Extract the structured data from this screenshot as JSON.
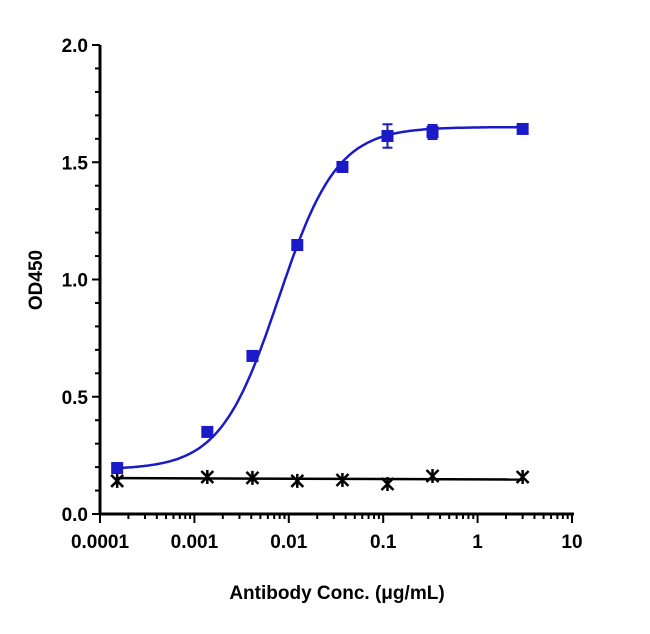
{
  "chart_data": {
    "type": "scatter",
    "title": "",
    "xlabel": "Antibody Conc. (μg/mL)",
    "ylabel": "OD450",
    "xscale": "log",
    "xlim": [
      0.0001,
      10
    ],
    "ylim": [
      0,
      2.0
    ],
    "x_ticks": [
      "0.0001",
      "0.001",
      "0.01",
      "0.1",
      "1",
      "10"
    ],
    "y_ticks": [
      "0.0",
      "0.5",
      "1.0",
      "1.5",
      "2.0"
    ],
    "grid": false,
    "legend": "none",
    "series": [
      {
        "color": "#1a1ac8",
        "marker": "square",
        "fit": "sigmoidal curve",
        "x": [
          0.000152,
          0.00137,
          0.00412,
          0.0123,
          0.037,
          0.111,
          0.333,
          3
        ],
        "y": [
          0.196,
          0.35,
          0.674,
          1.147,
          1.48,
          1.612,
          1.629,
          1.642
        ],
        "error": [
          0.01,
          0.01,
          0.01,
          0.02,
          0.02,
          0.05,
          0.03,
          0.01
        ]
      },
      {
        "color": "#000000",
        "marker": "x",
        "fit": "flat line",
        "x": [
          0.000152,
          0.00137,
          0.00412,
          0.0123,
          0.037,
          0.111,
          0.333,
          3
        ],
        "y": [
          0.141,
          0.158,
          0.154,
          0.141,
          0.145,
          0.128,
          0.162,
          0.158
        ]
      }
    ]
  }
}
